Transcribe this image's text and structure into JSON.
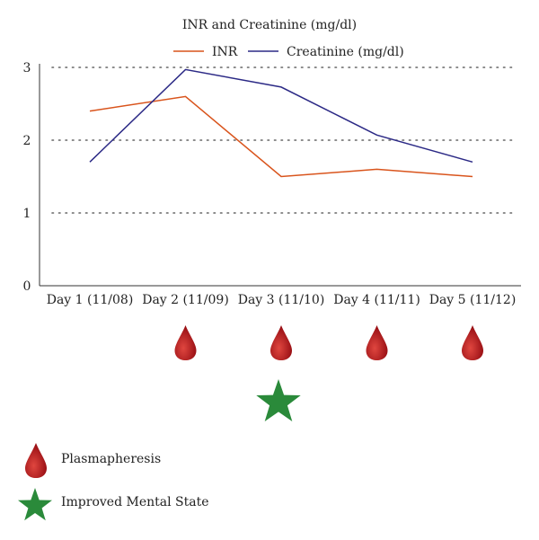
{
  "chart_data": {
    "type": "line",
    "title": "INR and Creatinine (mg/dl)",
    "categories": [
      "Day 1 (11/08)",
      "Day 2 (11/09)",
      "Day 3 (11/10)",
      "Day 4 (11/11)",
      "Day 5 (11/12)"
    ],
    "series": [
      {
        "name": "INR",
        "values": [
          2.4,
          2.6,
          1.5,
          1.6,
          1.5
        ],
        "color": "#d9541c"
      },
      {
        "name": "Creatinine (mg/dl)",
        "values": [
          1.7,
          2.97,
          2.73,
          2.07,
          1.7
        ],
        "color": "#2c2a86"
      }
    ],
    "ylim": [
      0,
      3
    ],
    "yticks": [
      "0",
      "1",
      "2",
      "3"
    ],
    "grid": true,
    "legend_position": "top"
  },
  "events": {
    "plasmapheresis_days": [
      1,
      2,
      3,
      4
    ],
    "improved_mental_state_days": [
      2
    ]
  },
  "key": {
    "plasmapheresis_label": "Plasmapheresis",
    "improved_mental_state_label": "Improved Mental State"
  },
  "colors": {
    "drop": "#b81d22",
    "star": "#2a8a3a",
    "grid": "#666666"
  }
}
